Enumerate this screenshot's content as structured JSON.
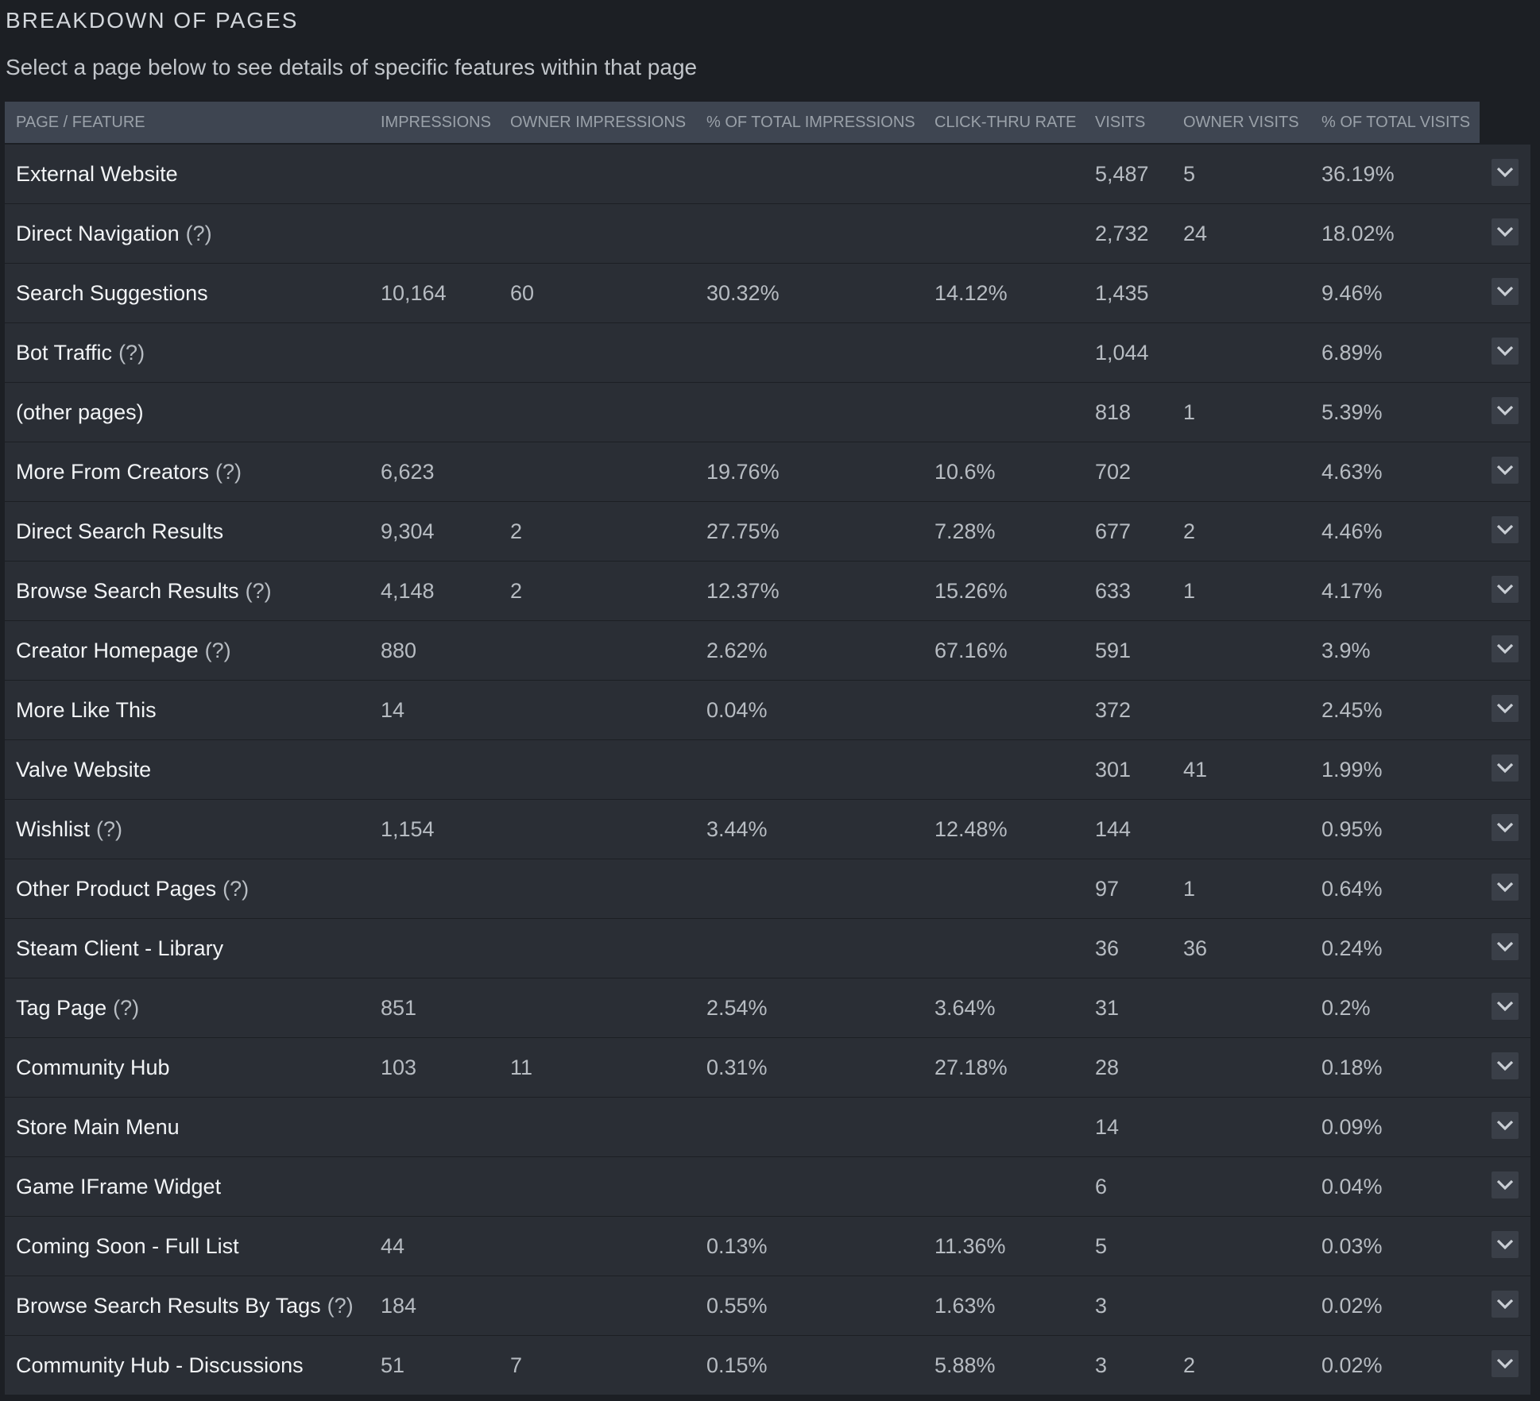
{
  "page": {
    "title": "BREAKDOWN OF PAGES",
    "subtitle": "Select a page below to see details of specific features within that page"
  },
  "columns": [
    "PAGE / FEATURE",
    "IMPRESSIONS",
    "OWNER IMPRESSIONS",
    "% OF TOTAL IMPRESSIONS",
    "CLICK-THRU RATE",
    "VISITS",
    "OWNER VISITS",
    "% OF TOTAL VISITS"
  ],
  "rows": [
    {
      "name": "External Website",
      "hint": "",
      "impressions": "",
      "owner_impressions": "",
      "pct_impressions": "",
      "ctr": "",
      "visits": "5,487",
      "owner_visits": "5",
      "pct_visits": "36.19%"
    },
    {
      "name": "Direct Navigation",
      "hint": "(?)",
      "impressions": "",
      "owner_impressions": "",
      "pct_impressions": "",
      "ctr": "",
      "visits": "2,732",
      "owner_visits": "24",
      "pct_visits": "18.02%"
    },
    {
      "name": "Search Suggestions",
      "hint": "",
      "impressions": "10,164",
      "owner_impressions": "60",
      "pct_impressions": "30.32%",
      "ctr": "14.12%",
      "visits": "1,435",
      "owner_visits": "",
      "pct_visits": "9.46%"
    },
    {
      "name": "Bot Traffic",
      "hint": "(?)",
      "impressions": "",
      "owner_impressions": "",
      "pct_impressions": "",
      "ctr": "",
      "visits": "1,044",
      "owner_visits": "",
      "pct_visits": "6.89%"
    },
    {
      "name": "(other pages)",
      "hint": "",
      "impressions": "",
      "owner_impressions": "",
      "pct_impressions": "",
      "ctr": "",
      "visits": "818",
      "owner_visits": "1",
      "pct_visits": "5.39%"
    },
    {
      "name": "More From Creators",
      "hint": "(?)",
      "impressions": "6,623",
      "owner_impressions": "",
      "pct_impressions": "19.76%",
      "ctr": "10.6%",
      "visits": "702",
      "owner_visits": "",
      "pct_visits": "4.63%"
    },
    {
      "name": "Direct Search Results",
      "hint": "",
      "impressions": "9,304",
      "owner_impressions": "2",
      "pct_impressions": "27.75%",
      "ctr": "7.28%",
      "visits": "677",
      "owner_visits": "2",
      "pct_visits": "4.46%"
    },
    {
      "name": "Browse Search Results",
      "hint": "(?)",
      "impressions": "4,148",
      "owner_impressions": "2",
      "pct_impressions": "12.37%",
      "ctr": "15.26%",
      "visits": "633",
      "owner_visits": "1",
      "pct_visits": "4.17%"
    },
    {
      "name": "Creator Homepage",
      "hint": "(?)",
      "impressions": "880",
      "owner_impressions": "",
      "pct_impressions": "2.62%",
      "ctr": "67.16%",
      "visits": "591",
      "owner_visits": "",
      "pct_visits": "3.9%"
    },
    {
      "name": "More Like This",
      "hint": "",
      "impressions": "14",
      "owner_impressions": "",
      "pct_impressions": "0.04%",
      "ctr": "",
      "visits": "372",
      "owner_visits": "",
      "pct_visits": "2.45%"
    },
    {
      "name": "Valve Website",
      "hint": "",
      "impressions": "",
      "owner_impressions": "",
      "pct_impressions": "",
      "ctr": "",
      "visits": "301",
      "owner_visits": "41",
      "pct_visits": "1.99%"
    },
    {
      "name": "Wishlist",
      "hint": "(?)",
      "impressions": "1,154",
      "owner_impressions": "",
      "pct_impressions": "3.44%",
      "ctr": "12.48%",
      "visits": "144",
      "owner_visits": "",
      "pct_visits": "0.95%"
    },
    {
      "name": "Other Product Pages",
      "hint": "(?)",
      "impressions": "",
      "owner_impressions": "",
      "pct_impressions": "",
      "ctr": "",
      "visits": "97",
      "owner_visits": "1",
      "pct_visits": "0.64%"
    },
    {
      "name": "Steam Client - Library",
      "hint": "",
      "impressions": "",
      "owner_impressions": "",
      "pct_impressions": "",
      "ctr": "",
      "visits": "36",
      "owner_visits": "36",
      "pct_visits": "0.24%"
    },
    {
      "name": "Tag Page",
      "hint": "(?)",
      "impressions": "851",
      "owner_impressions": "",
      "pct_impressions": "2.54%",
      "ctr": "3.64%",
      "visits": "31",
      "owner_visits": "",
      "pct_visits": "0.2%"
    },
    {
      "name": "Community Hub",
      "hint": "",
      "impressions": "103",
      "owner_impressions": "11",
      "pct_impressions": "0.31%",
      "ctr": "27.18%",
      "visits": "28",
      "owner_visits": "",
      "pct_visits": "0.18%"
    },
    {
      "name": "Store Main Menu",
      "hint": "",
      "impressions": "",
      "owner_impressions": "",
      "pct_impressions": "",
      "ctr": "",
      "visits": "14",
      "owner_visits": "",
      "pct_visits": "0.09%"
    },
    {
      "name": "Game IFrame Widget",
      "hint": "",
      "impressions": "",
      "owner_impressions": "",
      "pct_impressions": "",
      "ctr": "",
      "visits": "6",
      "owner_visits": "",
      "pct_visits": "0.04%"
    },
    {
      "name": "Coming Soon - Full List",
      "hint": "",
      "impressions": "44",
      "owner_impressions": "",
      "pct_impressions": "0.13%",
      "ctr": "11.36%",
      "visits": "5",
      "owner_visits": "",
      "pct_visits": "0.03%"
    },
    {
      "name": "Browse Search Results By Tags",
      "hint": "(?)",
      "impressions": "184",
      "owner_impressions": "",
      "pct_impressions": "0.55%",
      "ctr": "1.63%",
      "visits": "3",
      "owner_visits": "",
      "pct_visits": "0.02%"
    },
    {
      "name": "Community Hub - Discussions",
      "hint": "",
      "impressions": "51",
      "owner_impressions": "7",
      "pct_impressions": "0.15%",
      "ctr": "5.88%",
      "visits": "3",
      "owner_visits": "2",
      "pct_visits": "0.02%"
    }
  ],
  "icons": {
    "row_toggle": "chevron-down-icon"
  },
  "colors": {
    "background": "#1c1f24",
    "header": "#3e4551",
    "row": "#2a2e35",
    "chevron_button": "#3a3f48"
  }
}
